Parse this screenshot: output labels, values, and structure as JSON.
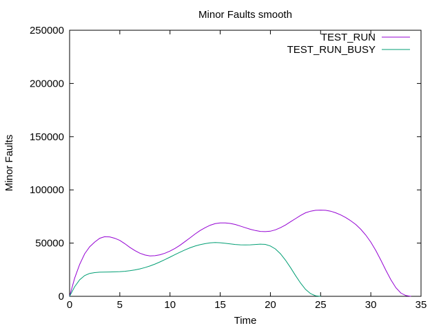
{
  "chart_data": {
    "type": "line",
    "title": "Minor Faults smooth",
    "xlabel": "Time",
    "ylabel": "Minor Faults",
    "xlim": [
      0,
      35
    ],
    "ylim": [
      0,
      250000
    ],
    "x_ticks": [
      0,
      5,
      10,
      15,
      20,
      25,
      30,
      35
    ],
    "y_ticks": [
      0,
      50000,
      100000,
      150000,
      200000,
      250000
    ],
    "grid": false,
    "legend_position": "top-right",
    "series": [
      {
        "name": "TEST_RUN",
        "color": "#9400d3",
        "x": [
          0,
          0.5,
          1,
          1.5,
          2,
          2.5,
          3,
          3.5,
          4,
          4.5,
          5,
          5.5,
          6,
          6.5,
          7,
          7.5,
          8,
          8.5,
          9,
          9.5,
          10,
          10.5,
          11,
          11.5,
          12,
          12.5,
          13,
          13.5,
          14,
          14.5,
          15,
          15.5,
          16,
          16.5,
          17,
          17.5,
          18,
          18.5,
          19,
          19.5,
          20,
          20.5,
          21,
          21.5,
          22,
          22.5,
          23,
          23.5,
          24,
          24.5,
          25,
          25.5,
          26,
          26.5,
          27,
          27.5,
          28,
          28.5,
          29,
          29.5,
          30,
          30.5,
          31,
          31.5,
          32,
          32.5,
          33,
          33.5,
          34
        ],
        "values": [
          0,
          17000,
          30000,
          40000,
          46500,
          51000,
          54500,
          56000,
          55800,
          54500,
          52500,
          49500,
          46000,
          43000,
          40500,
          38800,
          38000,
          38200,
          39000,
          40500,
          42500,
          45000,
          48000,
          51500,
          55000,
          58500,
          61800,
          64500,
          66800,
          68300,
          69000,
          69000,
          68500,
          67500,
          66000,
          64500,
          63000,
          61800,
          61000,
          60800,
          61200,
          62500,
          64500,
          67000,
          70000,
          73000,
          76000,
          78500,
          80000,
          80800,
          81000,
          80800,
          80000,
          78500,
          76500,
          74000,
          71000,
          67500,
          63000,
          57500,
          51000,
          43000,
          34000,
          24500,
          15500,
          8000,
          3000,
          700,
          0
        ]
      },
      {
        "name": "TEST_RUN_BUSY",
        "color": "#009e73",
        "x": [
          0,
          0.5,
          1,
          1.5,
          2,
          2.5,
          3,
          3.5,
          4,
          4.5,
          5,
          5.5,
          6,
          6.5,
          7,
          7.5,
          8,
          8.5,
          9,
          9.5,
          10,
          10.5,
          11,
          11.5,
          12,
          12.5,
          13,
          13.5,
          14,
          14.5,
          15,
          15.5,
          16,
          16.5,
          17,
          17.5,
          18,
          18.5,
          19,
          19.5,
          20,
          20.5,
          21,
          21.5,
          22,
          22.5,
          23,
          23.5,
          24,
          24.5,
          25
        ],
        "values": [
          0,
          9000,
          15500,
          19500,
          21500,
          22300,
          22700,
          22800,
          22900,
          23000,
          23200,
          23500,
          24000,
          24800,
          25800,
          27000,
          28500,
          30300,
          32300,
          34500,
          36800,
          39200,
          41500,
          43700,
          45600,
          47200,
          48500,
          49500,
          50200,
          50500,
          50300,
          49800,
          49200,
          48700,
          48400,
          48300,
          48400,
          48700,
          49000,
          48800,
          47300,
          44500,
          40000,
          34000,
          27000,
          19500,
          12500,
          6500,
          2500,
          500,
          0
        ]
      }
    ]
  }
}
